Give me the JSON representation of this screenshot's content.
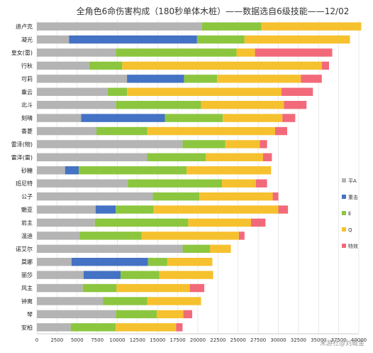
{
  "chart_data": {
    "type": "bar",
    "orientation": "horizontal",
    "stacked": true,
    "title": "全角色6命伤害构成（180秒单体木桩）——数据选自6级技能——12/02",
    "xlabel": "",
    "ylabel": "",
    "xlim": [
      0,
      40000
    ],
    "x_ticks": [
      "0",
      "2500",
      "5000",
      "7500",
      "10000",
      "12500",
      "15000",
      "17500",
      "20000",
      "22500",
      "25000",
      "27500",
      "30000",
      "32500",
      "35000",
      "37500",
      "40000"
    ],
    "grid": true,
    "legend_position": "right",
    "categories": [
      "迪卢克",
      "凝光",
      "皇女(雷)",
      "行秋",
      "可莉",
      "重云",
      "北斗",
      "刻晴",
      "香菱",
      "雷泽(物)",
      "雷泽(雷)",
      "砂糖",
      "班尼特",
      "公子",
      "魈亚",
      "岩主",
      "温迪",
      "诺艾尔",
      "莫娜",
      "丽莎",
      "风主",
      "钟离",
      "琴",
      "安柏"
    ],
    "series": [
      {
        "name": "平A",
        "color": "#b4b4b4",
        "values": [
          20500,
          4000,
          9800,
          6500,
          11200,
          8800,
          9800,
          5500,
          7400,
          18100,
          13700,
          3500,
          11300,
          14400,
          7300,
          7200,
          5300,
          18100,
          4300,
          5800,
          5700,
          8200,
          9800,
          4200
        ]
      },
      {
        "name": "重击",
        "color": "#4472c4",
        "values": [
          0,
          15900,
          0,
          0,
          7100,
          0,
          0,
          10400,
          0,
          0,
          0,
          1700,
          0,
          0,
          2500,
          0,
          0,
          0,
          9500,
          4600,
          0,
          0,
          0,
          0
        ]
      },
      {
        "name": "E",
        "color": "#8cc63f",
        "values": [
          7400,
          5900,
          15000,
          4100,
          4100,
          2400,
          10600,
          7200,
          6300,
          5300,
          7300,
          13400,
          11700,
          5800,
          4700,
          11600,
          7700,
          3400,
          2400,
          4800,
          4200,
          5500,
          5100,
          5600
        ]
      },
      {
        "name": "Q",
        "color": "#f6c12e",
        "values": [
          12400,
          13100,
          2300,
          24800,
          10400,
          19200,
          10300,
          7400,
          15900,
          4300,
          7100,
          10500,
          4200,
          9100,
          15500,
          7800,
          12100,
          2600,
          5600,
          6700,
          9100,
          6700,
          3300,
          7500
        ]
      },
      {
        "name": "特效",
        "color": "#f26a7a",
        "values": [
          0,
          0,
          9600,
          900,
          2600,
          3900,
          2800,
          1600,
          1500,
          900,
          1100,
          0,
          1400,
          700,
          1200,
          1800,
          700,
          0,
          0,
          0,
          1800,
          0,
          1100,
          800
        ]
      }
    ]
  },
  "watermark": {
    "top_right": "",
    "bottom_right": "米游社@刘威金"
  }
}
